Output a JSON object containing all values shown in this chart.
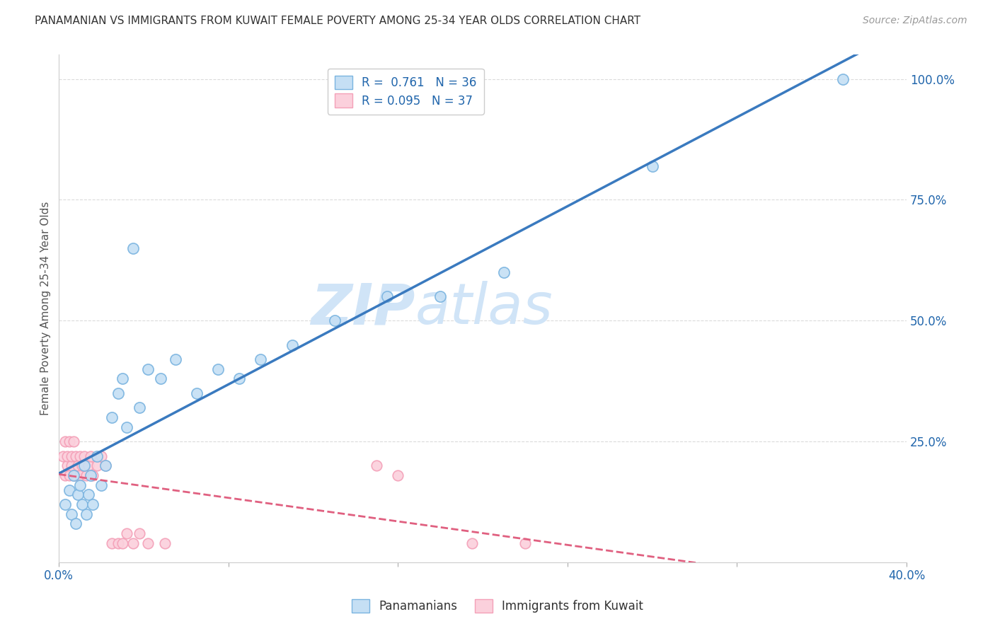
{
  "title": "PANAMANIAN VS IMMIGRANTS FROM KUWAIT FEMALE POVERTY AMONG 25-34 YEAR OLDS CORRELATION CHART",
  "source": "Source: ZipAtlas.com",
  "ylabel": "Female Poverty Among 25-34 Year Olds",
  "x_min": 0.0,
  "x_max": 0.4,
  "y_min": 0.0,
  "y_max": 1.05,
  "x_ticks": [
    0.0,
    0.08,
    0.16,
    0.24,
    0.32,
    0.4
  ],
  "y_ticks_right": [
    0.0,
    0.25,
    0.5,
    0.75,
    1.0
  ],
  "y_tick_labels_right": [
    "",
    "25.0%",
    "50.0%",
    "75.0%",
    "100.0%"
  ],
  "blue_R": 0.761,
  "blue_N": 36,
  "pink_R": 0.095,
  "pink_N": 37,
  "blue_color": "#7ab4e0",
  "blue_fill": "#c5dff4",
  "pink_color": "#f4a0b8",
  "pink_fill": "#fbd0dc",
  "blue_line_color": "#3a7abf",
  "pink_line_color": "#e06080",
  "watermark_zip": "ZIP",
  "watermark_atlas": "atlas",
  "watermark_color": "#d0e4f7",
  "blue_x": [
    0.003,
    0.005,
    0.006,
    0.007,
    0.008,
    0.009,
    0.01,
    0.011,
    0.012,
    0.013,
    0.014,
    0.015,
    0.016,
    0.018,
    0.02,
    0.022,
    0.025,
    0.028,
    0.03,
    0.032,
    0.035,
    0.038,
    0.042,
    0.048,
    0.055,
    0.065,
    0.075,
    0.085,
    0.095,
    0.11,
    0.13,
    0.155,
    0.18,
    0.21,
    0.28,
    0.37
  ],
  "blue_y": [
    0.12,
    0.15,
    0.1,
    0.18,
    0.08,
    0.14,
    0.16,
    0.12,
    0.2,
    0.1,
    0.14,
    0.18,
    0.12,
    0.22,
    0.16,
    0.2,
    0.3,
    0.35,
    0.38,
    0.28,
    0.65,
    0.32,
    0.4,
    0.38,
    0.42,
    0.35,
    0.4,
    0.38,
    0.42,
    0.45,
    0.5,
    0.55,
    0.55,
    0.6,
    0.82,
    1.0
  ],
  "pink_x": [
    0.002,
    0.003,
    0.003,
    0.004,
    0.004,
    0.005,
    0.005,
    0.006,
    0.006,
    0.007,
    0.007,
    0.008,
    0.008,
    0.009,
    0.01,
    0.01,
    0.011,
    0.012,
    0.013,
    0.014,
    0.015,
    0.016,
    0.018,
    0.02,
    0.022,
    0.025,
    0.028,
    0.03,
    0.032,
    0.035,
    0.038,
    0.042,
    0.05,
    0.15,
    0.16,
    0.195,
    0.22
  ],
  "pink_y": [
    0.22,
    0.18,
    0.25,
    0.2,
    0.22,
    0.18,
    0.25,
    0.2,
    0.22,
    0.18,
    0.25,
    0.22,
    0.18,
    0.2,
    0.22,
    0.18,
    0.2,
    0.22,
    0.18,
    0.2,
    0.22,
    0.18,
    0.2,
    0.22,
    0.2,
    0.04,
    0.04,
    0.04,
    0.06,
    0.04,
    0.06,
    0.04,
    0.04,
    0.2,
    0.18,
    0.04,
    0.04
  ],
  "background_color": "#ffffff",
  "grid_color": "#cccccc"
}
